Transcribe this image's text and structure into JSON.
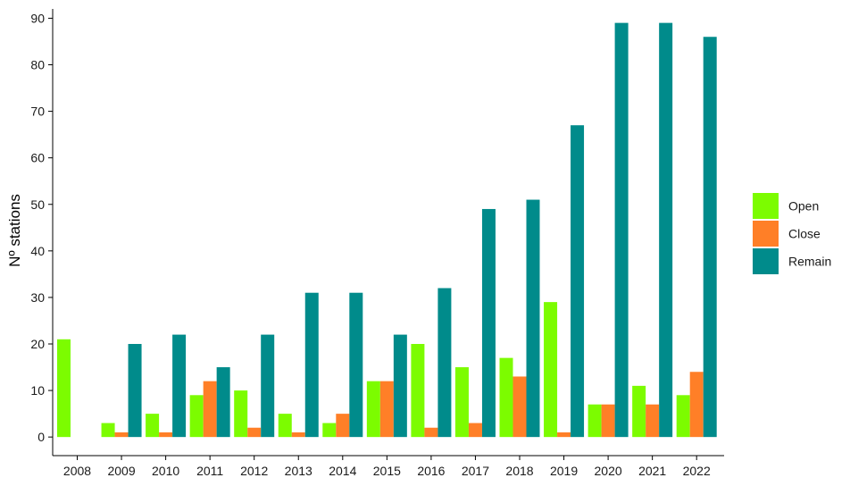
{
  "chart_data": {
    "type": "bar",
    "title": "",
    "xlabel": "",
    "ylabel": "Nº stations",
    "ylim": [
      -4,
      92
    ],
    "yticks": [
      0,
      10,
      20,
      30,
      40,
      50,
      60,
      70,
      80,
      90
    ],
    "grid": false,
    "legend_position": "right",
    "categories": [
      "2008",
      "2009",
      "2010",
      "2011",
      "2012",
      "2013",
      "2014",
      "2015",
      "2016",
      "2017",
      "2018",
      "2019",
      "2020",
      "2021",
      "2022"
    ],
    "series": [
      {
        "name": "Open",
        "color": "#7cfc00",
        "values": [
          21,
          3,
          5,
          9,
          10,
          5,
          3,
          12,
          20,
          15,
          17,
          29,
          7,
          11,
          9
        ]
      },
      {
        "name": "Close",
        "color": "#ff7f27",
        "values": [
          0,
          1,
          1,
          12,
          2,
          1,
          5,
          12,
          2,
          3,
          13,
          1,
          7,
          7,
          14
        ]
      },
      {
        "name": "Remain",
        "color": "#008b8b",
        "values": [
          0,
          20,
          22,
          15,
          22,
          31,
          31,
          22,
          32,
          49,
          51,
          67,
          89,
          89,
          86
        ]
      }
    ]
  }
}
